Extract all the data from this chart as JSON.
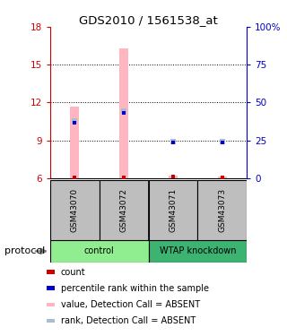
{
  "title": "GDS2010 / 1561538_at",
  "samples": [
    "GSM43070",
    "GSM43072",
    "GSM43071",
    "GSM43073"
  ],
  "group_colors_map": {
    "control": "#90EE90",
    "WTAP knockdown": "#3CB371"
  },
  "groups": [
    "control",
    "control",
    "WTAP knockdown",
    "WTAP knockdown"
  ],
  "group_labels": [
    "control",
    "WTAP knockdown"
  ],
  "sample_bg_color": "#BEBEBE",
  "ylim_left": [
    6,
    18
  ],
  "ylim_right": [
    0,
    100
  ],
  "yticks_left": [
    6,
    9,
    12,
    15,
    18
  ],
  "yticks_right": [
    0,
    25,
    50,
    75,
    100
  ],
  "yticklabels_right": [
    "0",
    "25",
    "50",
    "75",
    "100%"
  ],
  "bar_values": [
    11.7,
    16.3,
    6.2,
    6.15
  ],
  "bar_color_absent": "#FFB6C1",
  "rank_values_absent": [
    10.55,
    11.35,
    8.9,
    8.9
  ],
  "rank_color_absent": "#AABBD4",
  "count_values": [
    6.05,
    6.05,
    6.12,
    6.05
  ],
  "count_color": "#CC0000",
  "percentile_values": [
    10.4,
    11.2,
    8.85,
    8.85
  ],
  "percentile_color": "#0000CC",
  "bar_width": 0.18,
  "legend_items": [
    {
      "color": "#CC0000",
      "label": "count"
    },
    {
      "color": "#0000CC",
      "label": "percentile rank within the sample"
    },
    {
      "color": "#FFB6C1",
      "label": "value, Detection Call = ABSENT"
    },
    {
      "color": "#AABBD4",
      "label": "rank, Detection Call = ABSENT"
    }
  ],
  "left_axis_color": "#CC0000",
  "right_axis_color": "#0000CC",
  "protocol_label": "protocol",
  "dotted_lines": [
    9,
    12,
    15
  ]
}
